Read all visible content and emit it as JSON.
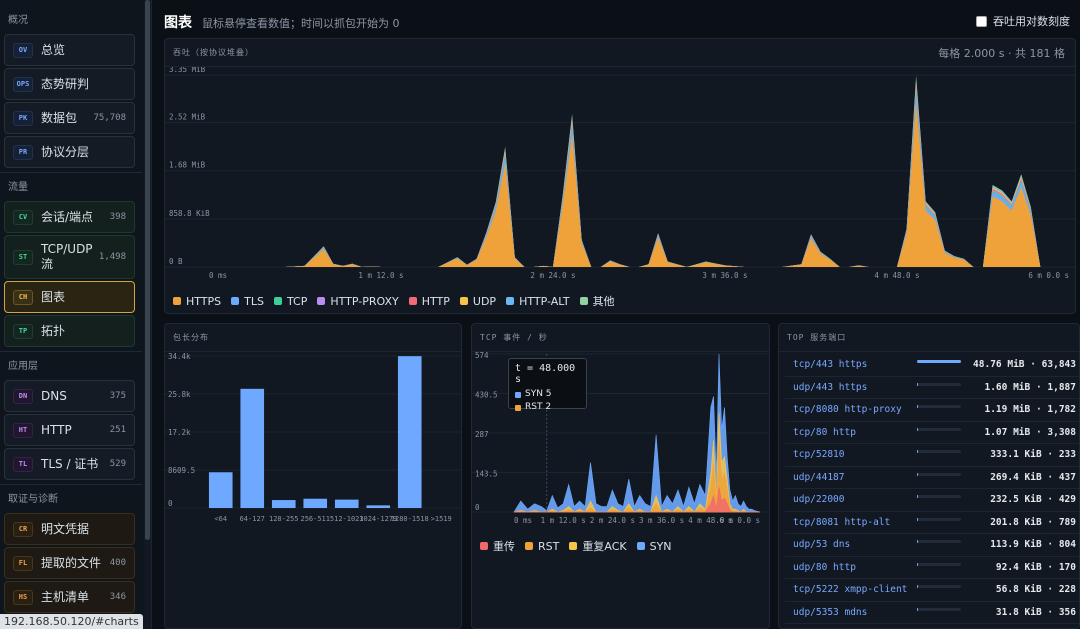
{
  "status_url": "192.168.50.120/#charts",
  "header": {
    "title": "图表",
    "subtitle": "鼠标悬停查看数值；时间以抓包开始为 0",
    "log_scale_label": "吞吐用对数刻度",
    "log_scale_checked": false
  },
  "sidebar": {
    "sections": [
      {
        "title": "概况",
        "items": [
          {
            "code": "OV",
            "label": "总览",
            "count": "",
            "group": "blue"
          },
          {
            "code": "OPS",
            "label": "态势研判",
            "count": "",
            "group": "blue"
          },
          {
            "code": "PK",
            "label": "数据包",
            "count": "75,708",
            "group": "blue"
          },
          {
            "code": "PR",
            "label": "协议分层",
            "count": "",
            "group": "blue"
          }
        ]
      },
      {
        "title": "流量",
        "items": [
          {
            "code": "CV",
            "label": "会话/端点",
            "count": "398",
            "group": "green"
          },
          {
            "code": "ST",
            "label": "TCP/UDP 流",
            "count": "1,498",
            "group": "green"
          },
          {
            "code": "CH",
            "label": "图表",
            "count": "",
            "group": "green",
            "active": true
          },
          {
            "code": "TP",
            "label": "拓扑",
            "count": "",
            "group": "green"
          }
        ]
      },
      {
        "title": "应用层",
        "items": [
          {
            "code": "DN",
            "label": "DNS",
            "count": "375",
            "group": "purple"
          },
          {
            "code": "HT",
            "label": "HTTP",
            "count": "251",
            "group": "purple"
          },
          {
            "code": "TL",
            "label": "TLS / 证书",
            "count": "529",
            "group": "purple"
          }
        ]
      },
      {
        "title": "取证与诊断",
        "items": [
          {
            "code": "CR",
            "label": "明文凭据",
            "count": "",
            "group": "orange"
          },
          {
            "code": "FL",
            "label": "提取的文件",
            "count": "400",
            "group": "orange"
          },
          {
            "code": "HS",
            "label": "主机清单",
            "count": "346",
            "group": "orange"
          }
        ]
      }
    ]
  },
  "throughput": {
    "title": "吞吐（按协议堆叠）",
    "info": "每格 2.000 s · 共 181 格",
    "legend": [
      {
        "name": "HTTPS",
        "color": "#f0a23a"
      },
      {
        "name": "TLS",
        "color": "#6ea8ff"
      },
      {
        "name": "TCP",
        "color": "#3ccf9a"
      },
      {
        "name": "HTTP-PROXY",
        "color": "#b98cf0"
      },
      {
        "name": "HTTP",
        "color": "#f06a7a"
      },
      {
        "name": "UDP",
        "color": "#f5c54a"
      },
      {
        "name": "HTTP-ALT",
        "color": "#6ab8f0"
      },
      {
        "name": "其他",
        "color": "#8fd4a0"
      }
    ]
  },
  "packet_len": {
    "title": "包长分布"
  },
  "tcp_events": {
    "title": "TCP 事件 / 秒",
    "tooltip": {
      "t": "t = 48.000 s",
      "rows": [
        {
          "label": "SYN 5",
          "color": "#6ea8ff"
        },
        {
          "label": "RST 2",
          "color": "#f0a23a"
        }
      ]
    },
    "legend": [
      {
        "name": "重传",
        "color": "#f06a6a"
      },
      {
        "name": "RST",
        "color": "#f0a23a"
      },
      {
        "name": "重复ACK",
        "color": "#f5c54a"
      },
      {
        "name": "SYN",
        "color": "#6ea8ff"
      }
    ]
  },
  "top_ports": {
    "title": "TOP 服务端口",
    "rows": [
      {
        "name": "tcp/443 https",
        "value": "48.76 MiB · 63,843",
        "share": 1.0
      },
      {
        "name": "udp/443 https",
        "value": "1.60 MiB · 1,887",
        "share": 0.033
      },
      {
        "name": "tcp/8080 http-proxy",
        "value": "1.19 MiB · 1,782",
        "share": 0.024
      },
      {
        "name": "tcp/80 http",
        "value": "1.07 MiB · 3,308",
        "share": 0.022
      },
      {
        "name": "tcp/52810",
        "value": "333.1 KiB · 233",
        "share": 0.007
      },
      {
        "name": "udp/44187",
        "value": "269.4 KiB · 437",
        "share": 0.005
      },
      {
        "name": "udp/22000",
        "value": "232.5 KiB · 429",
        "share": 0.005
      },
      {
        "name": "tcp/8081 http-alt",
        "value": "201.8 KiB · 789",
        "share": 0.004
      },
      {
        "name": "udp/53 dns",
        "value": "113.9 KiB · 804",
        "share": 0.002
      },
      {
        "name": "udp/80 http",
        "value": "92.4 KiB · 170",
        "share": 0.002
      },
      {
        "name": "tcp/5222 xmpp-client",
        "value": "56.8 KiB · 228",
        "share": 0.001
      },
      {
        "name": "udp/5353 mdns",
        "value": "31.8 KiB · 356",
        "share": 0.001
      }
    ]
  },
  "chart_data": [
    {
      "type": "area",
      "title": "吞吐（按协议堆叠）",
      "x_unit": "s",
      "x_ticks": [
        "0 ms",
        "1 m 12.0 s",
        "2 m 24.0 s",
        "3 m 36.0 s",
        "4 m 48.0 s",
        "6 m 0.0 s"
      ],
      "x_tick_values": [
        0,
        72,
        144,
        216,
        288,
        360
      ],
      "y_ticks": [
        "0 B",
        "858.8 KiB",
        "1.68 MiB",
        "2.52 MiB",
        "3.35 MiB"
      ],
      "y_tick_values": [
        0,
        879411,
        1761607,
        2642411,
        3512729
      ],
      "ylim": [
        0,
        3512729
      ],
      "x": [
        0,
        8,
        16,
        24,
        32,
        40,
        48,
        52,
        56,
        60,
        64,
        68,
        72,
        80,
        88,
        96,
        104,
        108,
        112,
        116,
        120,
        124,
        128,
        132,
        136,
        140,
        144,
        148,
        152,
        156,
        160,
        164,
        168,
        172,
        176,
        180,
        184,
        188,
        192,
        200,
        208,
        216,
        224,
        232,
        240,
        248,
        252,
        256,
        260,
        264,
        268,
        272,
        276,
        280,
        284,
        288,
        292,
        296,
        300,
        304,
        308,
        312,
        316,
        320,
        324,
        328,
        332,
        336,
        340,
        344,
        348,
        352,
        356,
        360
      ],
      "y": [
        0,
        0,
        0,
        0,
        0,
        20000,
        380000,
        60000,
        20000,
        60000,
        0,
        10000,
        0,
        0,
        0,
        0,
        180000,
        40000,
        150000,
        620000,
        1180000,
        2200000,
        180000,
        0,
        0,
        20000,
        0,
        1300000,
        2800000,
        500000,
        0,
        0,
        120000,
        50000,
        0,
        0,
        50000,
        620000,
        100000,
        0,
        100000,
        30000,
        0,
        0,
        0,
        50000,
        600000,
        280000,
        150000,
        0,
        0,
        30000,
        0,
        0,
        0,
        0,
        700000,
        3500000,
        1200000,
        1000000,
        300000,
        200000,
        150000,
        0,
        0,
        1500000,
        1400000,
        1200000,
        1700000,
        1100000,
        0,
        0,
        0,
        0
      ]
    },
    {
      "type": "bar",
      "title": "包长分布",
      "categories": [
        "<64",
        "64-127",
        "128-255",
        "256-511",
        "512-1023",
        "1024-1279",
        "1280-1518",
        ">1519"
      ],
      "values": [
        8100,
        27000,
        1800,
        2100,
        1900,
        600,
        34400,
        0
      ],
      "y_ticks": [
        "0",
        "8609.5",
        "17.2k",
        "25.8k",
        "34.4k"
      ],
      "y_tick_values": [
        0,
        8609.5,
        17219,
        25828.5,
        34438
      ],
      "ylim": [
        0,
        34438
      ]
    },
    {
      "type": "area",
      "title": "TCP 事件 / 秒",
      "x_ticks": [
        "0 ms",
        "1 m 12.0 s",
        "2 m 24.0 s",
        "3 m 36.0 s",
        "4 m 48.0 s",
        "6 m 0.0 s"
      ],
      "x_tick_values": [
        0,
        72,
        144,
        216,
        288,
        360
      ],
      "y_ticks": [
        "0",
        "143.5",
        "287",
        "430.5",
        "574"
      ],
      "y_tick_values": [
        0,
        143.5,
        287,
        430.5,
        574
      ],
      "ylim": [
        0,
        574
      ],
      "x": [
        0,
        10,
        20,
        30,
        40,
        48,
        56,
        64,
        72,
        80,
        88,
        96,
        104,
        112,
        120,
        128,
        136,
        144,
        152,
        160,
        168,
        176,
        184,
        192,
        200,
        208,
        216,
        224,
        232,
        240,
        248,
        256,
        264,
        272,
        280,
        288,
        292,
        296,
        300,
        304,
        308,
        312,
        316,
        320,
        324,
        328,
        332,
        336,
        340,
        344,
        348,
        352,
        360
      ],
      "series": [
        {
          "name": "SYN",
          "values": [
            0,
            40,
            10,
            30,
            20,
            5,
            60,
            15,
            30,
            100,
            20,
            40,
            20,
            180,
            30,
            20,
            20,
            80,
            30,
            20,
            120,
            20,
            60,
            30,
            20,
            280,
            20,
            60,
            30,
            80,
            20,
            90,
            30,
            100,
            60,
            380,
            420,
            140,
            574,
            300,
            380,
            200,
            80,
            40,
            60,
            30,
            20,
            40,
            20,
            10,
            10,
            5,
            0
          ]
        },
        {
          "name": "重复ACK",
          "values": [
            0,
            5,
            0,
            5,
            0,
            0,
            10,
            0,
            5,
            20,
            0,
            10,
            0,
            40,
            0,
            0,
            0,
            20,
            5,
            0,
            30,
            0,
            10,
            0,
            0,
            60,
            0,
            10,
            0,
            20,
            0,
            20,
            0,
            30,
            10,
            140,
            260,
            50,
            360,
            180,
            200,
            120,
            30,
            10,
            10,
            5,
            0,
            10,
            0,
            0,
            0,
            0,
            0
          ]
        },
        {
          "name": "RST",
          "values": [
            0,
            2,
            0,
            2,
            0,
            2,
            5,
            0,
            2,
            10,
            0,
            5,
            0,
            15,
            0,
            0,
            0,
            10,
            2,
            0,
            15,
            0,
            5,
            0,
            0,
            30,
            0,
            5,
            0,
            10,
            0,
            10,
            0,
            15,
            5,
            90,
            180,
            30,
            260,
            120,
            140,
            80,
            20,
            5,
            5,
            2,
            0,
            5,
            0,
            0,
            0,
            0,
            0
          ]
        },
        {
          "name": "重传",
          "values": [
            0,
            0,
            0,
            0,
            0,
            0,
            0,
            0,
            0,
            0,
            0,
            0,
            0,
            0,
            0,
            0,
            0,
            0,
            0,
            0,
            0,
            0,
            0,
            0,
            0,
            0,
            0,
            0,
            0,
            0,
            0,
            0,
            0,
            0,
            0,
            30,
            60,
            10,
            90,
            40,
            50,
            30,
            5,
            0,
            0,
            0,
            0,
            0,
            0,
            0,
            0,
            0,
            0
          ]
        }
      ]
    }
  ]
}
